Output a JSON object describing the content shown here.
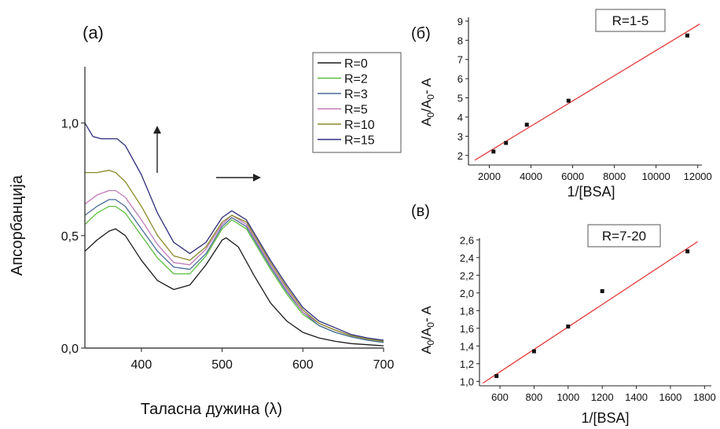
{
  "panels": {
    "a": {
      "label": "(а)"
    },
    "b": {
      "label": "(б)"
    },
    "c": {
      "label": "(в)"
    }
  },
  "chart_data": [
    {
      "id": "a",
      "type": "line",
      "xlabel": "Таласна дужина (λ)",
      "ylabel": "Апсорбанција",
      "xlim": [
        330,
        700
      ],
      "ylim": [
        0,
        1.25
      ],
      "xticks": [
        400,
        500,
        600,
        700
      ],
      "yticks": [
        0.0,
        0.5,
        1.0
      ],
      "ytick_labels": [
        "0,0",
        "0,5",
        "1,0"
      ],
      "grid": false,
      "legend_position": "top-right",
      "series": [
        {
          "name": "R=0",
          "color": "#1a1a1a",
          "x": [
            330,
            345,
            360,
            368,
            380,
            400,
            420,
            440,
            460,
            480,
            500,
            505,
            520,
            540,
            560,
            580,
            600,
            620,
            640,
            660,
            680,
            700
          ],
          "y": [
            0.43,
            0.48,
            0.52,
            0.53,
            0.5,
            0.39,
            0.3,
            0.26,
            0.28,
            0.37,
            0.48,
            0.49,
            0.45,
            0.32,
            0.2,
            0.12,
            0.07,
            0.045,
            0.03,
            0.02,
            0.015,
            0.01
          ]
        },
        {
          "name": "R=2",
          "color": "#5cbf3f",
          "x": [
            330,
            345,
            360,
            368,
            380,
            400,
            420,
            440,
            460,
            480,
            500,
            512,
            530,
            560,
            580,
            600,
            620,
            640,
            660,
            680,
            700
          ],
          "y": [
            0.55,
            0.6,
            0.63,
            0.63,
            0.6,
            0.5,
            0.4,
            0.33,
            0.33,
            0.41,
            0.53,
            0.57,
            0.53,
            0.35,
            0.24,
            0.15,
            0.1,
            0.07,
            0.05,
            0.035,
            0.025
          ]
        },
        {
          "name": "R=3",
          "color": "#4a6a9a",
          "x": [
            330,
            345,
            360,
            368,
            380,
            400,
            420,
            440,
            460,
            480,
            500,
            512,
            530,
            560,
            580,
            600,
            620,
            640,
            660,
            680,
            700
          ],
          "y": [
            0.59,
            0.63,
            0.66,
            0.66,
            0.63,
            0.53,
            0.43,
            0.36,
            0.35,
            0.42,
            0.54,
            0.58,
            0.54,
            0.36,
            0.25,
            0.16,
            0.1,
            0.07,
            0.05,
            0.035,
            0.025
          ]
        },
        {
          "name": "R=5",
          "color": "#c079b8",
          "x": [
            330,
            345,
            360,
            368,
            380,
            400,
            420,
            440,
            460,
            480,
            500,
            512,
            530,
            560,
            580,
            600,
            620,
            640,
            660,
            680,
            700
          ],
          "y": [
            0.64,
            0.68,
            0.7,
            0.7,
            0.67,
            0.57,
            0.46,
            0.38,
            0.37,
            0.44,
            0.55,
            0.59,
            0.55,
            0.37,
            0.26,
            0.16,
            0.11,
            0.08,
            0.055,
            0.04,
            0.03
          ]
        },
        {
          "name": "R=10",
          "color": "#8a8a2a",
          "x": [
            330,
            345,
            360,
            368,
            380,
            400,
            420,
            440,
            460,
            480,
            500,
            512,
            530,
            560,
            580,
            600,
            620,
            640,
            660,
            680,
            700
          ],
          "y": [
            0.78,
            0.78,
            0.79,
            0.78,
            0.74,
            0.63,
            0.5,
            0.41,
            0.39,
            0.45,
            0.56,
            0.59,
            0.56,
            0.38,
            0.27,
            0.17,
            0.11,
            0.08,
            0.055,
            0.04,
            0.03
          ]
        },
        {
          "name": "R=15",
          "color": "#2e2e7a",
          "x": [
            330,
            340,
            350,
            360,
            370,
            380,
            400,
            420,
            440,
            460,
            480,
            500,
            512,
            530,
            560,
            580,
            600,
            620,
            640,
            660,
            680,
            700
          ],
          "y": [
            1.0,
            0.94,
            0.93,
            0.93,
            0.93,
            0.9,
            0.77,
            0.6,
            0.47,
            0.42,
            0.47,
            0.58,
            0.61,
            0.57,
            0.39,
            0.28,
            0.18,
            0.12,
            0.09,
            0.06,
            0.045,
            0.035
          ]
        }
      ],
      "annotations": [
        {
          "type": "arrow",
          "direction": "up"
        },
        {
          "type": "arrow",
          "direction": "right"
        }
      ]
    },
    {
      "id": "b",
      "type": "scatter",
      "annotation": "R=1-5",
      "xlabel": "1/[BSA]",
      "ylabel_parts": [
        "A",
        "0",
        "/A",
        "0",
        "- A"
      ],
      "xlim": [
        1000,
        12200
      ],
      "ylim": [
        1.5,
        9.2
      ],
      "xticks": [
        2000,
        4000,
        6000,
        8000,
        10000,
        12000
      ],
      "yticks": [
        2,
        3,
        4,
        5,
        6,
        7,
        8,
        9
      ],
      "points": [
        {
          "x": 2200,
          "y": 2.2
        },
        {
          "x": 2800,
          "y": 2.65
        },
        {
          "x": 3800,
          "y": 3.6
        },
        {
          "x": 5800,
          "y": 4.85
        },
        {
          "x": 11500,
          "y": 8.25
        }
      ],
      "fit": {
        "x": [
          1300,
          12100
        ],
        "y": [
          1.75,
          8.85
        ],
        "color": "#e03030"
      }
    },
    {
      "id": "c",
      "type": "scatter",
      "annotation": "R=7-20",
      "xlabel": "1/[BSA]",
      "ylabel_parts": [
        "A",
        "0",
        "/A",
        "0",
        "- A"
      ],
      "xlim": [
        480,
        1840
      ],
      "ylim": [
        0.95,
        2.62
      ],
      "xticks": [
        600,
        800,
        1000,
        1200,
        1400,
        1600,
        1800
      ],
      "yticks": [
        1.0,
        1.2,
        1.4,
        1.6,
        1.8,
        2.0,
        2.2,
        2.4,
        2.6
      ],
      "ytick_labels": [
        "1,0",
        "1,2",
        "1,4",
        "1,6",
        "1,8",
        "2,0",
        "2,2",
        "2,4",
        "2,6"
      ],
      "points": [
        {
          "x": 580,
          "y": 1.06
        },
        {
          "x": 800,
          "y": 1.34
        },
        {
          "x": 1000,
          "y": 1.62
        },
        {
          "x": 1200,
          "y": 2.02
        },
        {
          "x": 1700,
          "y": 2.47
        }
      ],
      "fit": {
        "x": [
          500,
          1760
        ],
        "y": [
          0.98,
          2.58
        ],
        "color": "#e03030"
      }
    }
  ]
}
